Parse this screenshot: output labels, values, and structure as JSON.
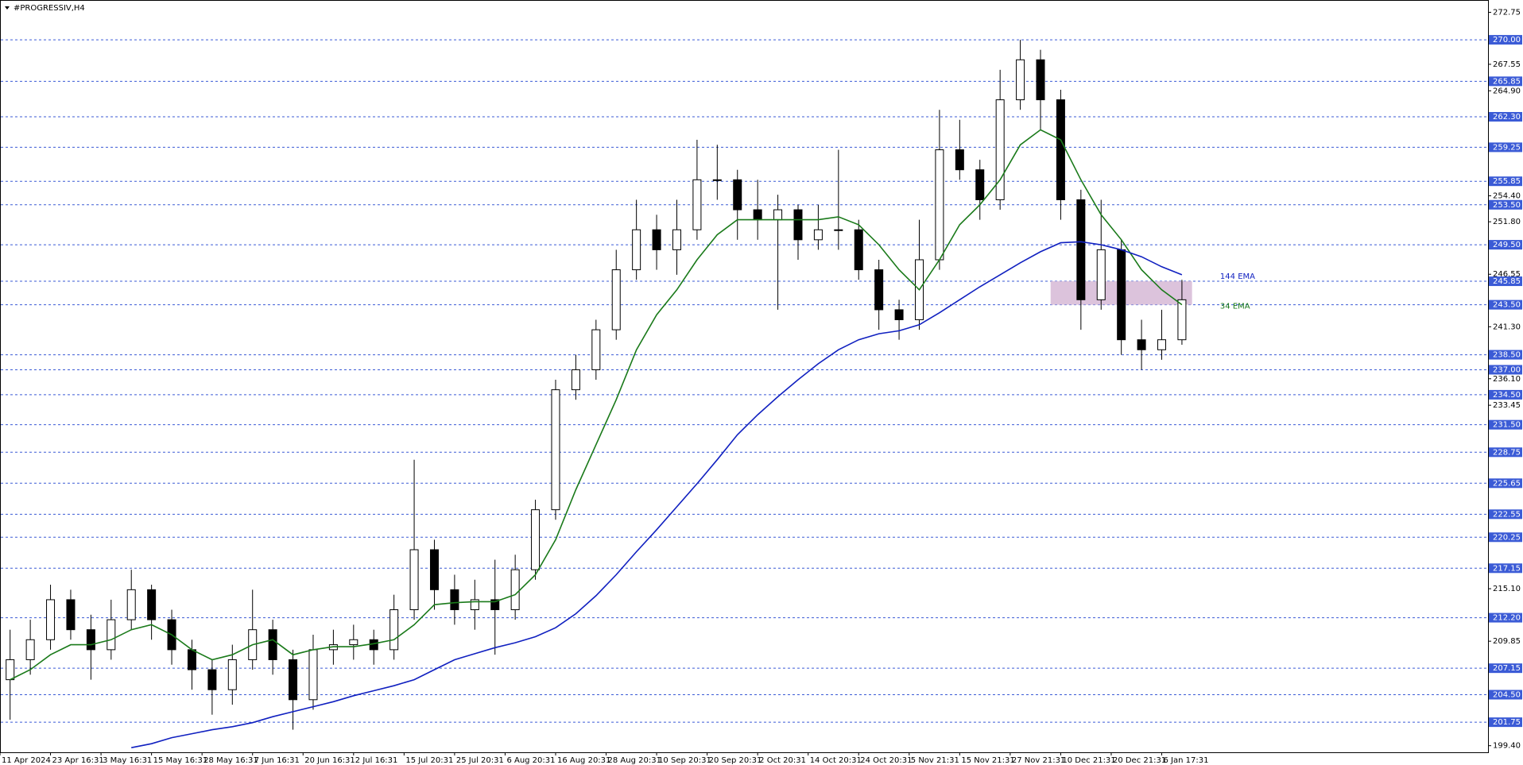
{
  "chart_data": {
    "type": "candlestick",
    "title": "#PROGRESSIV,H4",
    "xlim": [
      0,
      147.3
    ],
    "ylim": [
      198.74,
      273.98
    ],
    "x": [
      1,
      3,
      5,
      7,
      9,
      11,
      13,
      15,
      17,
      19,
      21,
      23,
      25,
      27,
      29,
      31,
      33,
      35,
      37,
      39,
      41,
      43,
      45,
      47,
      49,
      51,
      53,
      55,
      57,
      59,
      61,
      63,
      65,
      67,
      69,
      71,
      73,
      75,
      77,
      79,
      81,
      83,
      85,
      87,
      89,
      91,
      93,
      95,
      97,
      99,
      101,
      103,
      105,
      107,
      109,
      111,
      113,
      115,
      117
    ],
    "open": [
      206,
      208,
      210,
      214,
      211,
      209,
      212,
      215,
      212,
      209,
      207,
      205,
      208,
      211,
      208,
      204,
      209,
      209.5,
      210,
      209,
      213,
      219,
      215,
      213,
      214,
      213,
      217,
      223,
      235,
      237,
      241,
      247,
      251,
      249,
      251,
      256,
      256,
      253,
      252,
      253,
      250,
      251,
      251,
      247,
      243,
      242,
      248,
      259,
      257,
      254,
      264,
      268,
      264,
      254,
      244,
      249,
      240,
      239,
      240
    ],
    "high": [
      211,
      212,
      215.5,
      215,
      212.5,
      214,
      217,
      215.5,
      213,
      210,
      208,
      209.5,
      215,
      212,
      209,
      210.5,
      211,
      211.5,
      211,
      214.5,
      228,
      220,
      216.5,
      216,
      218,
      218.5,
      224,
      236,
      238.5,
      242,
      249,
      254,
      252.5,
      254,
      260,
      259.5,
      257,
      256,
      254.5,
      253.5,
      253.5,
      259,
      252,
      248,
      244,
      252,
      263,
      262,
      258,
      267,
      270,
      269,
      265,
      255,
      254,
      250,
      242,
      243,
      246
    ],
    "low": [
      202,
      206.5,
      209,
      210,
      206,
      208,
      211,
      210,
      207.5,
      205,
      202.5,
      203.5,
      207,
      206.5,
      201,
      203,
      207.5,
      208,
      207.5,
      208,
      212,
      213,
      211.5,
      211,
      208.5,
      212,
      216,
      222,
      234,
      236,
      240,
      246,
      247,
      246.5,
      250,
      254,
      250,
      250,
      243,
      248,
      249,
      249,
      246,
      241,
      240,
      241,
      247,
      256,
      252,
      253,
      263,
      261,
      252,
      241,
      243,
      238.5,
      237,
      238,
      239.5
    ],
    "close": [
      208,
      210,
      214,
      211,
      209,
      212,
      215,
      212,
      209,
      207,
      205,
      208,
      211,
      208,
      204,
      209,
      209.5,
      210,
      209,
      213,
      219,
      215,
      213,
      214,
      213,
      217,
      223,
      235,
      237,
      241,
      247,
      251,
      249,
      251,
      256,
      256,
      253,
      252,
      253,
      250,
      251,
      251,
      247,
      243,
      242,
      248,
      259,
      257,
      254,
      264,
      268,
      264,
      254,
      244,
      249,
      240,
      239,
      240,
      244
    ],
    "up_color": "#ffffff",
    "down_color": "#000000",
    "series": [
      {
        "name": "34 EMA",
        "color": "#1a7a1a",
        "values": [
          206,
          207,
          208.5,
          209.5,
          209.5,
          210,
          211,
          211.5,
          210.5,
          209,
          208,
          208.5,
          209.5,
          210,
          208.5,
          209,
          209.3,
          209.3,
          209.6,
          210,
          211.5,
          213.5,
          213.7,
          213.8,
          213.8,
          214.5,
          216.5,
          220,
          225,
          229.5,
          234,
          239,
          242.5,
          245,
          248,
          250.5,
          252,
          252,
          252,
          252,
          252,
          252.3,
          251.5,
          249.5,
          247,
          245,
          248,
          251.5,
          253.5,
          256,
          259.5,
          261,
          260,
          256,
          252.5,
          250,
          247,
          245,
          243.5
        ]
      },
      {
        "name": "144 EMA",
        "color": "#1020c0",
        "values": [
          null,
          null,
          null,
          null,
          null,
          null,
          199.2,
          199.6,
          200.2,
          200.6,
          201,
          201.3,
          201.7,
          202.3,
          202.8,
          203.3,
          203.8,
          204.4,
          204.9,
          205.4,
          206,
          207,
          208,
          208.6,
          209.2,
          209.7,
          210.3,
          211.2,
          212.6,
          214.4,
          216.5,
          218.8,
          221,
          223.3,
          225.6,
          228,
          230.5,
          232.5,
          234.3,
          236,
          237.6,
          239,
          240,
          240.6,
          240.9,
          241.5,
          242.7,
          244,
          245.3,
          246.5,
          247.7,
          248.8,
          249.7,
          249.8,
          249.5,
          249,
          248.3,
          247.3,
          246.5
        ]
      }
    ],
    "zone": {
      "xlim": [
        104,
        118
      ],
      "ylim": [
        243.5,
        245.85
      ],
      "color": "#d8bcd8"
    },
    "levels": [
      {
        "value": 270,
        "label": "270.00"
      },
      265.85,
      {
        "value": 262.3,
        "label": "262.30"
      },
      259.25,
      255.85,
      {
        "value": 253.5,
        "label": "253.50"
      },
      {
        "value": 249.5,
        "label": "249.50"
      },
      245.85,
      {
        "value": 243.5,
        "label": "243.50"
      },
      {
        "value": 238.5,
        "label": "238.50"
      },
      {
        "value": 237,
        "label": "237.00"
      },
      {
        "value": 234.5,
        "label": "234.50"
      },
      {
        "value": 231.5,
        "label": "231.50"
      },
      228.75,
      225.65,
      222.55,
      220.25,
      217.15,
      {
        "value": 212.2,
        "label": "212.20"
      },
      207.15,
      {
        "value": 204.5,
        "label": "204.50"
      },
      201.75
    ],
    "level_color": "#3b5bd6",
    "yticks": [
      272.75,
      267.55,
      {
        "value": 264.9,
        "label": "264.90"
      },
      {
        "value": 254.4,
        "label": "254.40"
      },
      {
        "value": 251.8,
        "label": "251.80"
      },
      246.55,
      {
        "value": 241.3,
        "label": "241.30"
      },
      {
        "value": 236.1,
        "label": "236.10"
      },
      233.45,
      {
        "value": 215.1,
        "label": "215.10"
      },
      209.85,
      {
        "value": 199.4,
        "label": "199.40"
      }
    ],
    "xticks": [
      {
        "value": 0,
        "label": "11 Apr 2024"
      },
      {
        "value": 5,
        "label": "23 Apr 16:31"
      },
      {
        "value": 10,
        "label": "3 May 16:31"
      },
      {
        "value": 15,
        "label": "15 May 16:31"
      },
      {
        "value": 20,
        "label": "28 May 16:31"
      },
      {
        "value": 25,
        "label": "7 Jun 16:31"
      },
      {
        "value": 30,
        "label": "20 Jun 16:31"
      },
      {
        "value": 35,
        "label": "2 Jul 16:31"
      },
      {
        "value": 40,
        "label": "15 Jul 20:31"
      },
      {
        "value": 45,
        "label": "25 Jul 20:31"
      },
      {
        "value": 50,
        "label": "6 Aug 20:31"
      },
      {
        "value": 55,
        "label": "16 Aug 20:31"
      },
      {
        "value": 60,
        "label": "28 Aug 20:31"
      },
      {
        "value": 65,
        "label": "10 Sep 20:31"
      },
      {
        "value": 70,
        "label": "20 Sep 20:31"
      },
      {
        "value": 75,
        "label": "2 Oct 20:31"
      },
      {
        "value": 80,
        "label": "14 Oct 20:31"
      },
      {
        "value": 85,
        "label": "24 Oct 20:31"
      },
      {
        "value": 90,
        "label": "5 Nov 21:31"
      },
      {
        "value": 95,
        "label": "15 Nov 21:31"
      },
      {
        "value": 100,
        "label": "27 Nov 21:31"
      },
      {
        "value": 105,
        "label": "10 Dec 21:31"
      },
      {
        "value": 110,
        "label": "20 Dec 21:31"
      },
      {
        "value": 115,
        "label": "6 Jan 17:31"
      }
    ]
  }
}
